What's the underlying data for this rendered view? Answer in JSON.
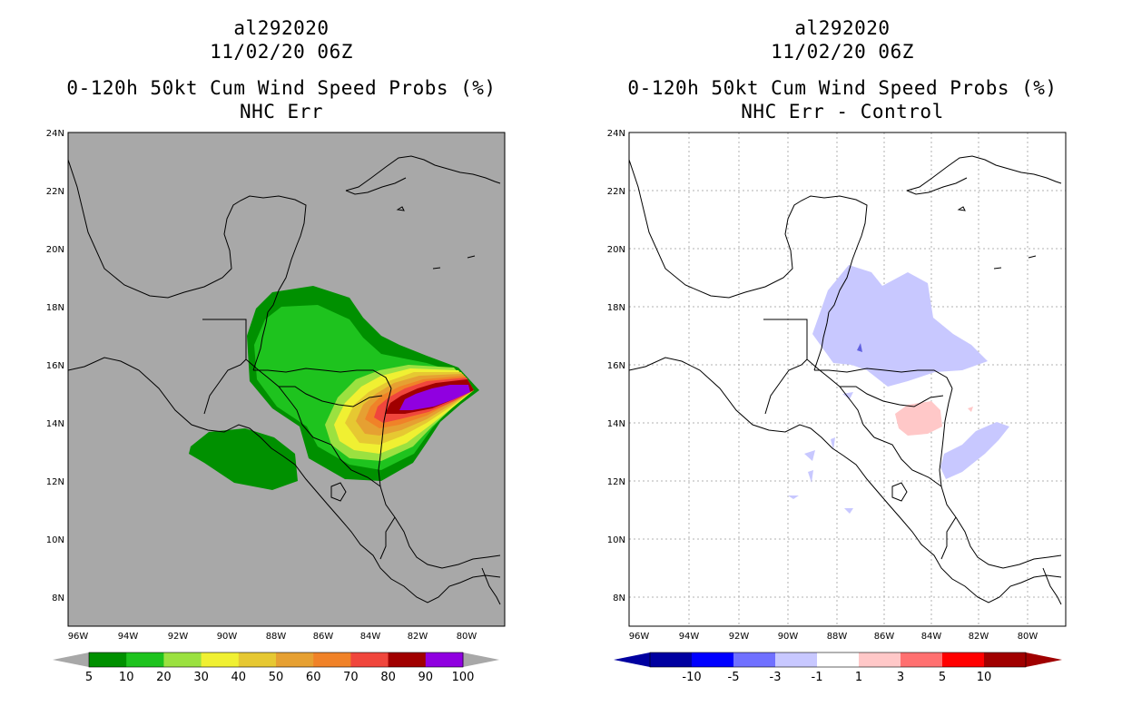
{
  "left_panel": {
    "storm_id": "al292020",
    "datetime": "11/02/20 06Z",
    "product": "0-120h 50kt Cum Wind Speed Probs (%)",
    "subtitle": "NHC Err",
    "lat_labels": [
      "24N",
      "22N",
      "20N",
      "18N",
      "16N",
      "14N",
      "12N",
      "10N",
      "8N"
    ],
    "lon_labels": [
      "96W",
      "94W",
      "92W",
      "90W",
      "88W",
      "86W",
      "84W",
      "82W",
      "80W"
    ],
    "colorbar_labels": [
      "5",
      "10",
      "20",
      "30",
      "40",
      "50",
      "60",
      "70",
      "80",
      "90",
      "100"
    ],
    "colorbar_colors": [
      "#009000",
      "#1ec31e",
      "#9be140",
      "#f0f032",
      "#e6c832",
      "#e6a032",
      "#f08228",
      "#f0463c",
      "#a00000",
      "#9000e0"
    ],
    "background_color": "#a8a8a8"
  },
  "right_panel": {
    "storm_id": "al292020",
    "datetime": "11/02/20 06Z",
    "product": "0-120h 50kt Cum Wind Speed Probs (%)",
    "subtitle": "NHC Err - Control",
    "lat_labels": [
      "24N",
      "22N",
      "20N",
      "18N",
      "16N",
      "14N",
      "12N",
      "10N",
      "8N"
    ],
    "lon_labels": [
      "96W",
      "94W",
      "92W",
      "90W",
      "88W",
      "86W",
      "84W",
      "82W",
      "80W"
    ],
    "colorbar_labels": [
      "-10",
      "-5",
      "-3",
      "-1",
      "1",
      "3",
      "5",
      "10"
    ],
    "colorbar_colors": [
      "#0000a0",
      "#0000ff",
      "#7070ff",
      "#c8c8ff",
      "#ffffff",
      "#ffc8c8",
      "#ff7070",
      "#ff0000",
      "#a00000"
    ],
    "background_color": "#ffffff"
  }
}
